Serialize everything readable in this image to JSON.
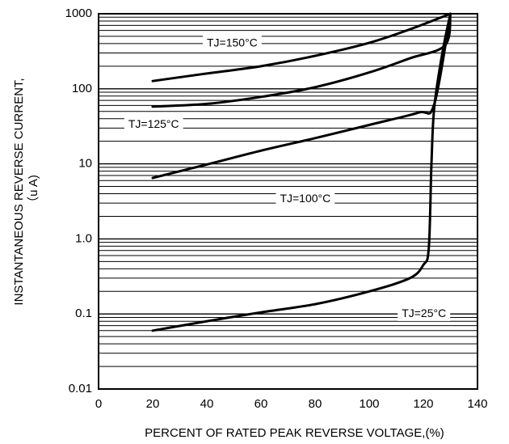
{
  "chart_data": {
    "type": "line",
    "title": "",
    "xlabel": "PERCENT OF RATED PEAK REVERSE VOLTAGE,(%)",
    "ylabel_line1": "INSTANTANEOUS REVERSE CURRENT,",
    "ylabel_line2": "（u A)",
    "xlim": [
      0,
      140
    ],
    "ylim": [
      0.01,
      1000
    ],
    "yscale": "log",
    "grid": "horizontal log gridlines",
    "x_ticks": [
      {
        "value": 0,
        "label": "0"
      },
      {
        "value": 20,
        "label": "20"
      },
      {
        "value": 40,
        "label": "40"
      },
      {
        "value": 60,
        "label": "60"
      },
      {
        "value": 80,
        "label": "80"
      },
      {
        "value": 100,
        "label": "100"
      },
      {
        "value": 120,
        "label": "120"
      },
      {
        "value": 140,
        "label": "140"
      }
    ],
    "y_ticks": [
      {
        "value": 0.01,
        "label": "0.01"
      },
      {
        "value": 0.1,
        "label": "0.1"
      },
      {
        "value": 1,
        "label": "1.0"
      },
      {
        "value": 10,
        "label": "10"
      },
      {
        "value": 100,
        "label": "100"
      },
      {
        "value": 1000,
        "label": "1000"
      }
    ],
    "series": [
      {
        "name": "TJ=150°C",
        "label_at": [
          40,
          400
        ],
        "points": [
          [
            20,
            127
          ],
          [
            40,
            160
          ],
          [
            60,
            200
          ],
          [
            80,
            275
          ],
          [
            100,
            410
          ],
          [
            115,
            620
          ],
          [
            130,
            1000
          ]
        ]
      },
      {
        "name": "TJ=125°C",
        "label_at": [
          11,
          33
        ],
        "points": [
          [
            20,
            58
          ],
          [
            40,
            63
          ],
          [
            60,
            78
          ],
          [
            80,
            105
          ],
          [
            100,
            165
          ],
          [
            115,
            255
          ],
          [
            128,
            380
          ],
          [
            130,
            1000
          ]
        ]
      },
      {
        "name": "TJ=100°C",
        "label_at": [
          67,
          3.4
        ],
        "points": [
          [
            20,
            6.5
          ],
          [
            40,
            9.8
          ],
          [
            60,
            15
          ],
          [
            80,
            22
          ],
          [
            100,
            33
          ],
          [
            118,
            48
          ],
          [
            124,
            62
          ],
          [
            130,
            1000
          ]
        ]
      },
      {
        "name": "TJ=25°C",
        "label_at": [
          112,
          0.1
        ],
        "points": [
          [
            20,
            0.06
          ],
          [
            40,
            0.08
          ],
          [
            60,
            0.105
          ],
          [
            80,
            0.135
          ],
          [
            100,
            0.2
          ],
          [
            115,
            0.3
          ],
          [
            120,
            0.45
          ],
          [
            122,
            0.75
          ],
          [
            123,
            10
          ],
          [
            124,
            55
          ],
          [
            127,
            300
          ],
          [
            130,
            1000
          ]
        ]
      }
    ]
  }
}
